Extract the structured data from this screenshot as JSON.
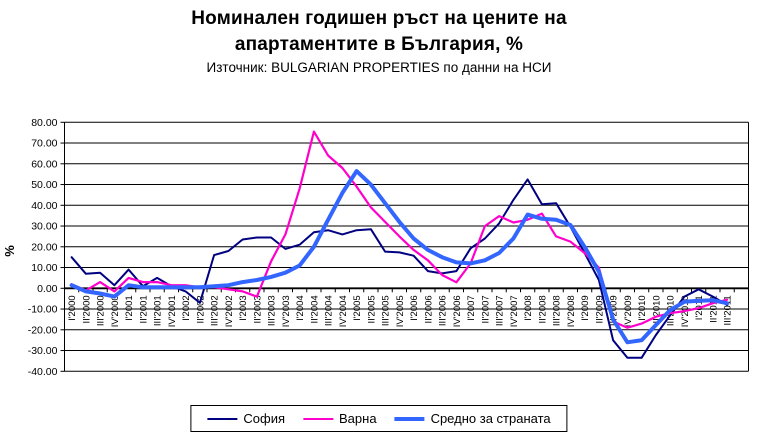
{
  "title": {
    "line1": "Номинален годишен ръст на цените на",
    "line2": "апартаментите в България, %",
    "subtitle": "Източник: BULGARIAN PROPERTIES по данни на НСИ"
  },
  "chart_data": {
    "type": "line",
    "title": "Номинален годишен ръст на цените на апартаментите в България, %",
    "subtitle": "Източник: BULGARIAN PROPERTIES по данни на НСИ",
    "ylabel": "%",
    "xlabel": "",
    "ylim": [
      -40,
      80
    ],
    "ytick_step": 10,
    "ytick_labels": [
      "80.00",
      "70.00",
      "60.00",
      "50.00",
      "40.00",
      "30.00",
      "20.00",
      "10.00",
      "0.00",
      "-10.00",
      "-20.00",
      "-30.00",
      "-40.00"
    ],
    "grid": true,
    "legend_position": "bottom",
    "categories": [
      "I'2000",
      "II'2000",
      "III'2000",
      "IV'2000",
      "I'2001",
      "II'2001",
      "III'2001",
      "IV'2001",
      "I'2002",
      "II'2002",
      "III'2002",
      "IV'2002",
      "I'2003",
      "II'2003",
      "III'2003",
      "IV'2003",
      "I'2004",
      "II'2004",
      "III'2004",
      "IV'2004",
      "I'2005",
      "II'2005",
      "III'2005",
      "IV'2005",
      "I'2006",
      "II'2006",
      "III'2006",
      "IV'2006",
      "I'2007",
      "II'2007",
      "III'2007",
      "IV'2007",
      "I'2008",
      "II'2008",
      "III'2008",
      "IV'2008",
      "I'2009",
      "II'2009",
      "III'2009",
      "IV'2009",
      "I'2010",
      "II'2010",
      "III'2010",
      "IV'2010",
      "I'2011",
      "II'2011",
      "III'2011"
    ],
    "series": [
      {
        "name": "София",
        "color": "#000080",
        "stroke_width": 2,
        "values": [
          15,
          7,
          7.5,
          1.5,
          9,
          1,
          5,
          1,
          -1.5,
          -7,
          16,
          18,
          23.5,
          24.5,
          24.5,
          19,
          21,
          27,
          28,
          26,
          28,
          28.5,
          17.7,
          17.3,
          15.7,
          8.3,
          7.2,
          8.3,
          19.3,
          24,
          31.3,
          42.6,
          52.5,
          40.5,
          41,
          29.7,
          17,
          4,
          -25,
          -33.5,
          -33.5,
          -22.5,
          -13,
          -4,
          -0.5,
          -4,
          -8
        ]
      },
      {
        "name": "Варна",
        "color": "#ff00cc",
        "stroke_width": 2.2,
        "values": [
          2,
          -1,
          3,
          -1.5,
          5,
          3,
          3,
          1.5,
          1.5,
          0.5,
          0.5,
          -0.5,
          -1.5,
          -4,
          13,
          26,
          48,
          75.5,
          64,
          58,
          49,
          39,
          32,
          25,
          18.5,
          13.5,
          6.4,
          2.9,
          12,
          30,
          34.8,
          31.7,
          33,
          36,
          25,
          22.5,
          17,
          10,
          -16,
          -19,
          -17,
          -13.7,
          -12,
          -11,
          -9.6,
          -7.2,
          -5.5
        ]
      },
      {
        "name": "Средно за страната",
        "color": "#3366ff",
        "stroke_width": 4,
        "values": [
          1.5,
          -1.5,
          -2.5,
          -4,
          1.5,
          0.5,
          0.5,
          0.5,
          0.5,
          0.5,
          1,
          1.5,
          3,
          4,
          5.5,
          7.5,
          11,
          20,
          33,
          46,
          56.5,
          50,
          41,
          32,
          24,
          18.5,
          15,
          12.5,
          12,
          13.5,
          17,
          24,
          35.5,
          33.5,
          33,
          30.5,
          20,
          8,
          -15,
          -26,
          -25,
          -17.7,
          -10.5,
          -6.5,
          -6,
          -5.8,
          -7.2
        ]
      }
    ]
  }
}
